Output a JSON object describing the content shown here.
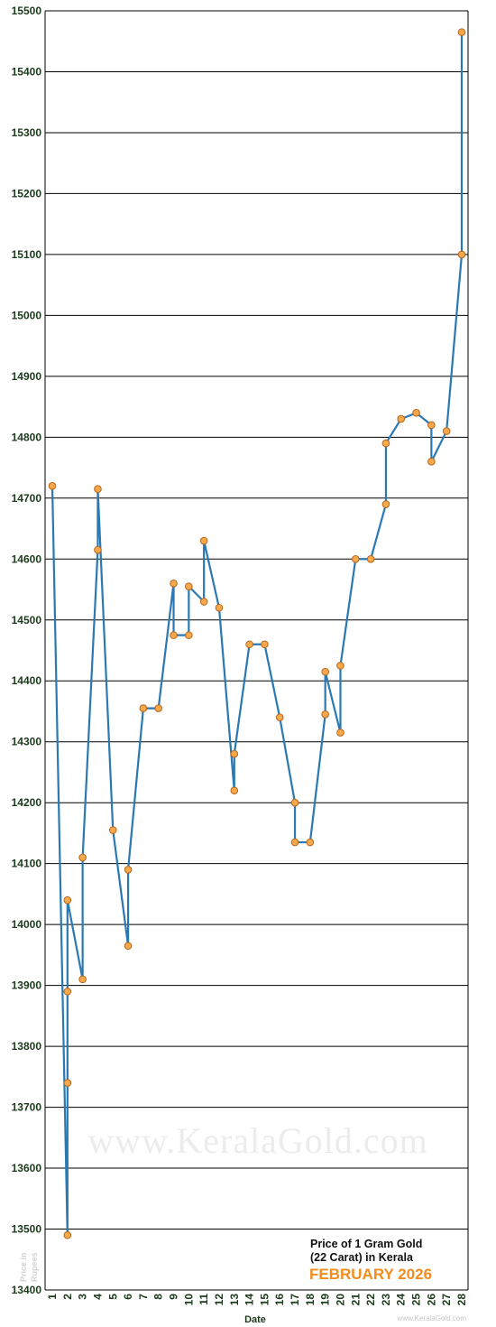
{
  "chart_data": {
    "type": "line",
    "title_line1": "Price of 1 Gram Gold",
    "title_line2": "(22 Carat) in Kerala",
    "subtitle": "FEBRUARY 2026",
    "xlabel": "Date",
    "ylabel_line1": "Price in",
    "ylabel_line2": "Rupees",
    "watermark": "www.KeralaGold.com",
    "source": "www.KeralaGold.com",
    "ylim": [
      13400,
      15500
    ],
    "yticks": [
      13400,
      13500,
      13600,
      13700,
      13800,
      13900,
      14000,
      14100,
      14200,
      14300,
      14400,
      14500,
      14600,
      14700,
      14800,
      14900,
      15000,
      15100,
      15200,
      15300,
      15400,
      15500
    ],
    "xlim": [
      1,
      28
    ],
    "xticks": [
      1,
      2,
      3,
      4,
      5,
      6,
      7,
      8,
      9,
      10,
      11,
      12,
      13,
      14,
      15,
      16,
      17,
      18,
      19,
      20,
      21,
      22,
      23,
      24,
      25,
      26,
      27,
      28
    ],
    "grid": true,
    "line_color": "#2a79b3",
    "marker_color": "#f7a84a",
    "marker_edge_color": "#b5651d",
    "points": [
      {
        "x": 1,
        "y": 14720
      },
      {
        "x": 2,
        "y": 13490
      },
      {
        "x": 2,
        "y": 13740
      },
      {
        "x": 2,
        "y": 13890
      },
      {
        "x": 2,
        "y": 14040
      },
      {
        "x": 3,
        "y": 13910
      },
      {
        "x": 3,
        "y": 14110
      },
      {
        "x": 4,
        "y": 14615
      },
      {
        "x": 4,
        "y": 14715
      },
      {
        "x": 5,
        "y": 14155
      },
      {
        "x": 6,
        "y": 13965
      },
      {
        "x": 6,
        "y": 14090
      },
      {
        "x": 7,
        "y": 14355
      },
      {
        "x": 8,
        "y": 14355
      },
      {
        "x": 9,
        "y": 14560
      },
      {
        "x": 9,
        "y": 14475
      },
      {
        "x": 10,
        "y": 14475
      },
      {
        "x": 10,
        "y": 14555
      },
      {
        "x": 11,
        "y": 14530
      },
      {
        "x": 11,
        "y": 14630
      },
      {
        "x": 12,
        "y": 14520
      },
      {
        "x": 13,
        "y": 14220
      },
      {
        "x": 13,
        "y": 14280
      },
      {
        "x": 14,
        "y": 14460
      },
      {
        "x": 15,
        "y": 14460
      },
      {
        "x": 16,
        "y": 14340
      },
      {
        "x": 17,
        "y": 14200
      },
      {
        "x": 17,
        "y": 14135
      },
      {
        "x": 18,
        "y": 14135
      },
      {
        "x": 19,
        "y": 14345
      },
      {
        "x": 19,
        "y": 14415
      },
      {
        "x": 20,
        "y": 14315
      },
      {
        "x": 20,
        "y": 14425
      },
      {
        "x": 21,
        "y": 14600
      },
      {
        "x": 22,
        "y": 14600
      },
      {
        "x": 23,
        "y": 14690
      },
      {
        "x": 23,
        "y": 14790
      },
      {
        "x": 24,
        "y": 14830
      },
      {
        "x": 25,
        "y": 14840
      },
      {
        "x": 26,
        "y": 14820
      },
      {
        "x": 26,
        "y": 14760
      },
      {
        "x": 27,
        "y": 14810
      },
      {
        "x": 28,
        "y": 15100
      },
      {
        "x": 28,
        "y": 15465
      }
    ]
  }
}
